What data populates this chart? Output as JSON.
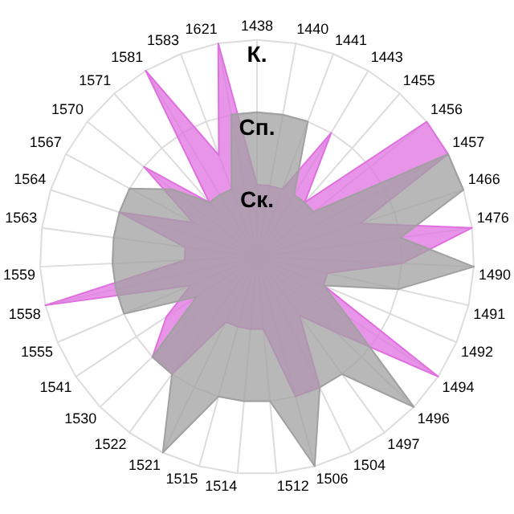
{
  "chart_data": {
    "type": "radar",
    "categories": [
      "1438",
      "1440",
      "1441",
      "1443",
      "1455",
      "1456",
      "1457",
      "1466",
      "1476",
      "1490",
      "1491",
      "1492",
      "1494",
      "1496",
      "1497",
      "1504",
      "1506",
      "1512",
      "1514",
      "1515",
      "1521",
      "1522",
      "1530",
      "1541",
      "1555",
      "1558",
      "1559",
      "1563",
      "1564",
      "1567",
      "1570",
      "1571",
      "1581",
      "1583",
      "1621"
    ],
    "series": [
      {
        "color": "#a0a0a0",
        "values": [
          2,
          2,
          2,
          1,
          1,
          1,
          3,
          3,
          2,
          3,
          2,
          1,
          1.5,
          3,
          2,
          2,
          3,
          2,
          2,
          2,
          3,
          2,
          2,
          1,
          2,
          2,
          2,
          2,
          2,
          2,
          1.5,
          1,
          1,
          1,
          2
        ]
      },
      {
        "color": "#e070e0",
        "values": [
          1,
          1,
          1,
          2,
          1,
          3,
          3,
          1.5,
          3,
          2,
          1,
          1,
          3,
          1.5,
          1,
          2,
          2,
          1,
          1,
          1,
          1,
          2,
          2,
          1.5,
          1,
          3,
          1,
          1,
          2,
          1,
          2,
          1,
          3,
          1.5,
          3
        ]
      }
    ],
    "ylim": [
      0,
      3
    ],
    "yticks": [
      {
        "value": 1,
        "label": "Ск."
      },
      {
        "value": 2,
        "label": "Сп."
      },
      {
        "value": 3,
        "label": "К."
      }
    ],
    "grid": true,
    "legend": false,
    "marker": "none"
  }
}
